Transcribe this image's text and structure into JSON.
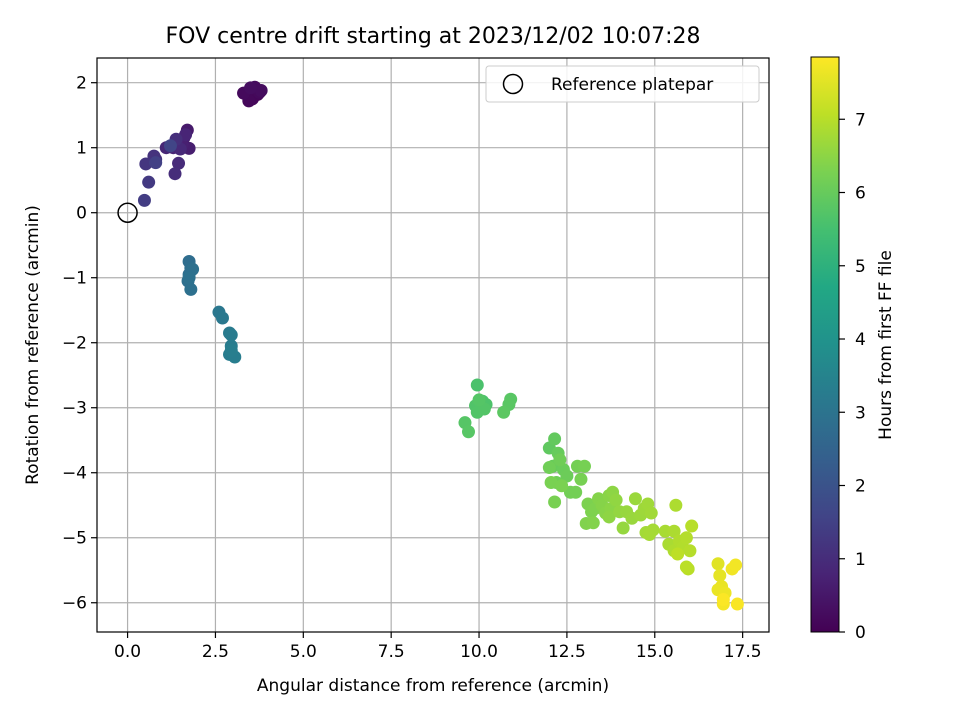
{
  "chart_data": {
    "type": "scatter",
    "title": "FOV centre drift starting at 2023/12/02 10:07:28",
    "xlabel": "Angular distance from reference (arcmin)",
    "ylabel": "Rotation from reference (arcmin)",
    "xlim": [
      -0.87,
      18.25
    ],
    "ylim": [
      -6.45,
      2.38
    ],
    "xticks": [
      0.0,
      2.5,
      5.0,
      7.5,
      10.0,
      12.5,
      15.0,
      17.5
    ],
    "xtick_labels": [
      "0.0",
      "2.5",
      "5.0",
      "7.5",
      "10.0",
      "12.5",
      "15.0",
      "17.5"
    ],
    "yticks": [
      -6,
      -5,
      -4,
      -3,
      -2,
      -1,
      0,
      1,
      2
    ],
    "ytick_labels": [
      "−6",
      "−5",
      "−4",
      "−3",
      "−2",
      "−1",
      "0",
      "1",
      "2"
    ],
    "grid": true,
    "legend": {
      "placement": "upper right",
      "entries": [
        "Reference platepar"
      ]
    },
    "reference_point": {
      "x": 0,
      "y": 0
    },
    "colorbar": {
      "label": "Hours from first FF file",
      "range": [
        0,
        7.85
      ],
      "ticks": [
        0,
        1,
        2,
        3,
        4,
        5,
        6,
        7
      ],
      "tick_labels": [
        "0",
        "1",
        "2",
        "3",
        "4",
        "5",
        "6",
        "7"
      ],
      "colormap": "viridis"
    },
    "points": [
      [
        3.4,
        1.85,
        0.05
      ],
      [
        3.5,
        1.78,
        0.07
      ],
      [
        3.6,
        1.9,
        0.08
      ],
      [
        3.7,
        1.82,
        0.1
      ],
      [
        3.55,
        1.75,
        0.12
      ],
      [
        3.65,
        1.88,
        0.13
      ],
      [
        3.45,
        1.72,
        0.15
      ],
      [
        3.75,
        1.85,
        0.17
      ],
      [
        3.3,
        1.84,
        0.2
      ],
      [
        3.62,
        1.93,
        0.22
      ],
      [
        3.8,
        1.88,
        0.24
      ],
      [
        3.5,
        1.92,
        0.26
      ],
      [
        1.7,
        1.27,
        0.55
      ],
      [
        1.6,
        1.15,
        0.6
      ],
      [
        1.75,
        0.99,
        0.65
      ],
      [
        1.55,
        1.05,
        0.7
      ],
      [
        1.4,
        1.1,
        0.75
      ],
      [
        1.3,
        1.0,
        0.8
      ],
      [
        1.65,
        1.2,
        0.82
      ],
      [
        1.1,
        1.0,
        0.85
      ],
      [
        1.5,
        0.98,
        0.9
      ],
      [
        1.45,
        0.76,
        0.95
      ],
      [
        1.35,
        0.6,
        1.0
      ],
      [
        1.38,
        1.13,
        1.05
      ],
      [
        0.8,
        0.82,
        1.1
      ],
      [
        0.75,
        0.87,
        1.15
      ],
      [
        0.52,
        0.75,
        1.2
      ],
      [
        0.6,
        0.47,
        1.3
      ],
      [
        0.48,
        0.19,
        1.4
      ],
      [
        0.8,
        0.77,
        1.5
      ],
      [
        1.22,
        1.03,
        1.6
      ],
      [
        1.75,
        -0.75,
        2.8
      ],
      [
        1.8,
        -0.85,
        2.82
      ],
      [
        1.75,
        -0.95,
        2.84
      ],
      [
        1.72,
        -1.05,
        2.86
      ],
      [
        1.85,
        -0.87,
        2.88
      ],
      [
        1.8,
        -1.18,
        2.9
      ],
      [
        1.75,
        -1.0,
        2.92
      ],
      [
        2.6,
        -1.53,
        3.1
      ],
      [
        2.7,
        -1.62,
        3.15
      ],
      [
        2.9,
        -1.85,
        3.2
      ],
      [
        2.95,
        -1.88,
        3.22
      ],
      [
        2.95,
        -2.05,
        3.25
      ],
      [
        2.9,
        -2.18,
        3.28
      ],
      [
        3.05,
        -2.22,
        3.3
      ],
      [
        2.95,
        -2.12,
        3.32
      ],
      [
        9.95,
        -2.65,
        5.6
      ],
      [
        10.1,
        -2.9,
        5.62
      ],
      [
        10.2,
        -2.95,
        5.64
      ],
      [
        10.05,
        -3.0,
        5.66
      ],
      [
        9.9,
        -2.97,
        5.68
      ],
      [
        9.95,
        -3.07,
        5.7
      ],
      [
        10.15,
        -3.02,
        5.72
      ],
      [
        10.0,
        -2.88,
        5.74
      ],
      [
        9.6,
        -3.23,
        5.76
      ],
      [
        9.7,
        -3.37,
        5.78
      ],
      [
        10.9,
        -2.87,
        5.8
      ],
      [
        10.85,
        -2.95,
        5.82
      ],
      [
        10.7,
        -3.07,
        5.84
      ],
      [
        12.0,
        -3.62,
        5.9
      ],
      [
        12.15,
        -3.48,
        5.95
      ],
      [
        12.25,
        -3.7,
        6.0
      ],
      [
        12.1,
        -3.9,
        6.02
      ],
      [
        12.4,
        -3.95,
        6.05
      ],
      [
        12.5,
        -4.05,
        6.08
      ],
      [
        12.2,
        -4.15,
        6.1
      ],
      [
        12.3,
        -3.8,
        6.12
      ],
      [
        12.0,
        -3.92,
        6.14
      ],
      [
        12.6,
        -4.3,
        6.16
      ],
      [
        12.75,
        -4.3,
        6.18
      ],
      [
        12.8,
        -3.9,
        6.2
      ],
      [
        13.0,
        -3.9,
        6.22
      ],
      [
        12.9,
        -4.1,
        6.24
      ],
      [
        12.15,
        -4.45,
        6.25
      ],
      [
        12.05,
        -4.15,
        6.26
      ],
      [
        12.35,
        -4.2,
        6.28
      ],
      [
        13.1,
        -4.48,
        6.3
      ],
      [
        13.2,
        -4.6,
        6.32
      ],
      [
        13.3,
        -4.55,
        6.34
      ],
      [
        13.05,
        -4.78,
        6.36
      ],
      [
        13.25,
        -4.77,
        6.38
      ],
      [
        13.4,
        -4.4,
        6.4
      ],
      [
        13.5,
        -4.5,
        6.42
      ],
      [
        13.6,
        -4.62,
        6.44
      ],
      [
        13.7,
        -4.35,
        6.46
      ],
      [
        13.75,
        -4.55,
        6.48
      ],
      [
        13.8,
        -4.3,
        6.5
      ],
      [
        13.7,
        -4.68,
        6.52
      ],
      [
        13.9,
        -4.42,
        6.55
      ],
      [
        14.0,
        -4.6,
        6.58
      ],
      [
        14.1,
        -4.85,
        6.6
      ],
      [
        14.2,
        -4.6,
        6.62
      ],
      [
        14.35,
        -4.7,
        6.64
      ],
      [
        14.45,
        -4.4,
        6.66
      ],
      [
        14.6,
        -4.65,
        6.68
      ],
      [
        14.7,
        -4.55,
        6.7
      ],
      [
        14.8,
        -4.48,
        6.72
      ],
      [
        14.9,
        -4.62,
        6.74
      ],
      [
        14.75,
        -4.92,
        6.76
      ],
      [
        14.95,
        -4.88,
        6.78
      ],
      [
        14.85,
        -4.95,
        6.8
      ],
      [
        15.3,
        -4.9,
        6.82
      ],
      [
        15.4,
        -5.1,
        6.84
      ],
      [
        15.55,
        -4.9,
        6.86
      ],
      [
        15.6,
        -4.5,
        6.88
      ],
      [
        15.55,
        -5.2,
        6.9
      ],
      [
        15.7,
        -5.05,
        6.92
      ],
      [
        15.8,
        -5.15,
        6.94
      ],
      [
        15.9,
        -5.0,
        6.96
      ],
      [
        16.0,
        -5.2,
        6.98
      ],
      [
        16.05,
        -4.82,
        7.0
      ],
      [
        15.95,
        -5.48,
        7.02
      ],
      [
        15.9,
        -5.45,
        7.04
      ],
      [
        15.65,
        -5.25,
        7.06
      ],
      [
        16.8,
        -5.4,
        7.5
      ],
      [
        16.85,
        -5.58,
        7.55
      ],
      [
        16.9,
        -5.75,
        7.6
      ],
      [
        16.8,
        -5.8,
        7.62
      ],
      [
        17.0,
        -5.85,
        7.65
      ],
      [
        17.2,
        -5.48,
        7.7
      ],
      [
        17.3,
        -5.42,
        7.72
      ],
      [
        16.95,
        -6.02,
        7.75
      ],
      [
        17.35,
        -6.02,
        7.8
      ],
      [
        16.95,
        -5.95,
        7.82
      ]
    ]
  }
}
